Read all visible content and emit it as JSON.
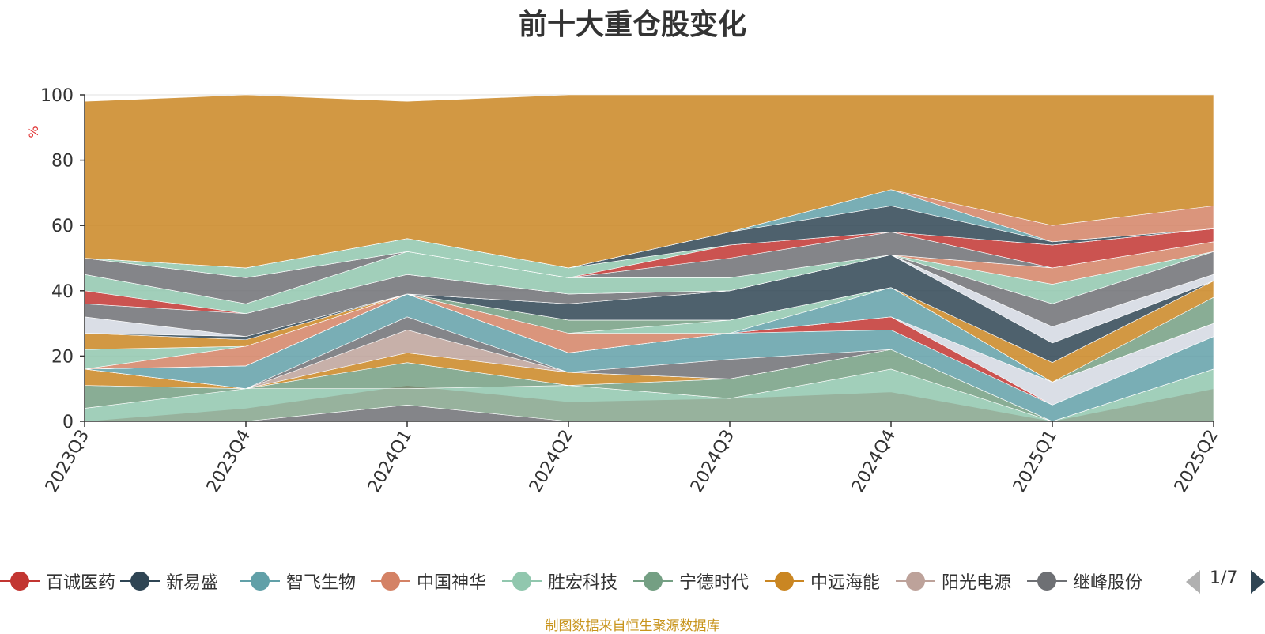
{
  "chart_data": {
    "type": "area",
    "title": "前十大重仓股变化",
    "ylabel": "%",
    "xlabel": "",
    "ylim": [
      0,
      100
    ],
    "yticks": [
      0,
      20,
      40,
      60,
      80,
      100
    ],
    "categories": [
      "2023Q3",
      "2023Q4",
      "2024Q1",
      "2024Q2",
      "2024Q3",
      "2024Q4",
      "2025Q1",
      "2025Q2"
    ],
    "stacked": true,
    "series": [
      {
        "name": "百诚医药",
        "values": [
          0,
          0,
          5,
          0,
          0,
          0,
          0,
          0
        ]
      },
      {
        "name": "新易盛",
        "values": [
          0,
          4,
          7,
          7,
          8,
          10,
          0,
          10
        ]
      },
      {
        "name": "智飞生物",
        "values": [
          4,
          6,
          0,
          0,
          0,
          0,
          0,
          0
        ]
      },
      {
        "name": "中国神华",
        "values": [
          0,
          0,
          0,
          4,
          0,
          0,
          0,
          0
        ]
      },
      {
        "name": "胜宏科技",
        "values": [
          0,
          0,
          0,
          0,
          0,
          6,
          0,
          6
        ]
      },
      {
        "name": "宁德时代",
        "values": [
          8,
          0,
          6,
          3,
          6,
          7,
          0,
          0
        ]
      },
      {
        "name": "中远海能",
        "values": [
          4,
          0,
          4,
          4,
          0,
          0,
          0,
          0
        ]
      },
      {
        "name": "阳光电源",
        "values": [
          0,
          0,
          7,
          0,
          0,
          0,
          0,
          0
        ]
      },
      {
        "name": "继峰股份",
        "values": [
          0,
          0,
          4,
          0,
          6,
          0,
          0,
          0
        ]
      }
    ],
    "legend_page": "1/7",
    "source_note": "制图数据来自恒生聚源数据库",
    "colors": [
      "#c23531",
      "#2f4554",
      "#61a0a8",
      "#d48265",
      "#91c7ae",
      "#749f83",
      "#ca8622",
      "#bda29a",
      "#6e7074"
    ],
    "legend": [
      {
        "name": "百诚医药",
        "color": "#c23531"
      },
      {
        "name": "新易盛",
        "color": "#2f4554"
      },
      {
        "name": "智飞生物",
        "color": "#61a0a8"
      },
      {
        "name": "中国神华",
        "color": "#d48265"
      },
      {
        "name": "胜宏科技",
        "color": "#91c7ae"
      },
      {
        "name": "宁德时代",
        "color": "#749f83"
      },
      {
        "name": "中远海能",
        "color": "#ca8622"
      },
      {
        "name": "阳光电源",
        "color": "#bda29a"
      },
      {
        "name": "继峰股份",
        "color": "#6e7074"
      }
    ],
    "bands": [
      {
        "color": "#6e7074",
        "values": [
          0,
          4,
          11,
          6,
          7,
          9,
          0,
          10
        ]
      },
      {
        "color": "#c23531",
        "values": [
          0,
          0,
          5,
          0,
          0,
          0,
          0,
          0
        ]
      },
      {
        "color": "#91c7ae",
        "values": [
          4,
          10,
          10,
          11,
          7,
          16,
          0,
          16
        ]
      },
      {
        "color": "#749f83",
        "values": [
          11,
          10,
          18,
          11,
          13,
          22,
          0,
          16
        ]
      },
      {
        "color": "#ca8622",
        "values": [
          16,
          10,
          21,
          15,
          13,
          22,
          0,
          16
        ]
      },
      {
        "color": "#bda29a",
        "values": [
          16,
          10,
          28,
          15,
          13,
          22,
          0,
          16
        ]
      },
      {
        "color": "#6e7074",
        "values": [
          16,
          10,
          32,
          15,
          19,
          22,
          0,
          16
        ]
      },
      {
        "color": "#61a0a8",
        "values": [
          16,
          17,
          39,
          21,
          27,
          28,
          5,
          26
        ]
      },
      {
        "color": "#c23531",
        "values": [
          16,
          17,
          39,
          21,
          27,
          32,
          5,
          26
        ]
      },
      {
        "color": "#d4d8e2",
        "values": [
          16,
          17,
          39,
          21,
          27,
          32,
          12,
          30
        ]
      },
      {
        "color": "#61a0a8",
        "values": [
          16,
          17,
          39,
          21,
          27,
          41,
          12,
          30
        ]
      },
      {
        "color": "#d48265",
        "values": [
          16,
          23,
          39,
          27,
          27,
          41,
          12,
          30
        ]
      },
      {
        "color": "#91c7ae",
        "values": [
          22,
          23,
          39,
          27,
          31,
          41,
          12,
          30
        ]
      },
      {
        "color": "#749f83",
        "values": [
          22,
          23,
          39,
          31,
          31,
          41,
          12,
          38
        ]
      },
      {
        "color": "#ca8622",
        "values": [
          27,
          25,
          39,
          31,
          31,
          41,
          18,
          43
        ]
      },
      {
        "color": "#2f4554",
        "values": [
          27,
          26,
          39,
          36,
          40,
          51,
          24,
          43
        ]
      },
      {
        "color": "#d4d8e2",
        "values": [
          32,
          26,
          39,
          36,
          40,
          51,
          29,
          45
        ]
      },
      {
        "color": "#6e7074",
        "values": [
          36,
          33,
          45,
          39,
          40,
          51,
          36,
          52
        ]
      },
      {
        "color": "#c23531",
        "values": [
          40,
          33,
          45,
          39,
          40,
          51,
          36,
          52
        ]
      },
      {
        "color": "#91c7ae",
        "values": [
          45,
          36,
          52,
          44,
          44,
          51,
          42,
          52
        ]
      },
      {
        "color": "#d48265",
        "values": [
          45,
          36,
          52,
          44,
          44,
          51,
          47,
          55
        ]
      },
      {
        "color": "#6e7074",
        "values": [
          50,
          44,
          52,
          44,
          50,
          58,
          47,
          55
        ]
      },
      {
        "color": "#c23531",
        "values": [
          50,
          44,
          52,
          44,
          54,
          58,
          54,
          59
        ]
      },
      {
        "color": "#91c7ae",
        "values": [
          50,
          47,
          56,
          47,
          54,
          58,
          54,
          59
        ]
      },
      {
        "color": "#2f4554",
        "values": [
          50,
          47,
          56,
          47,
          58,
          66,
          55,
          59
        ]
      },
      {
        "color": "#61a0a8",
        "values": [
          50,
          47,
          56,
          47,
          58,
          71,
          55,
          59
        ]
      },
      {
        "color": "#d48265",
        "values": [
          50,
          47,
          56,
          47,
          58,
          71,
          60,
          66
        ]
      },
      {
        "color": "#ca8622",
        "values": [
          98,
          100,
          98,
          100,
          100,
          100,
          100,
          100
        ]
      }
    ]
  }
}
